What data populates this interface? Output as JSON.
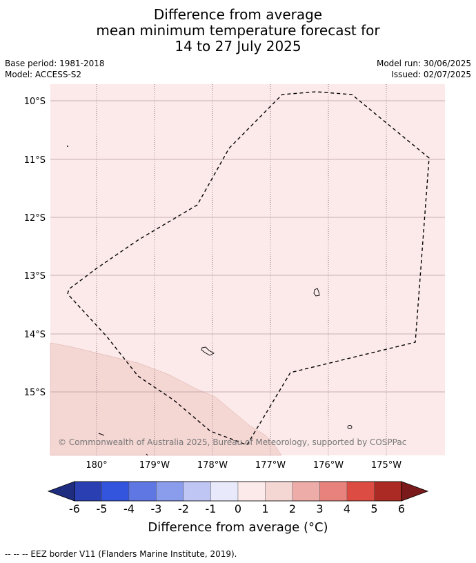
{
  "title": {
    "line1": "Difference from average",
    "line2": "mean minimum temperature forecast for",
    "line3": "14 to 27 July 2025"
  },
  "meta": {
    "base_period": "Base period: 1981-2018",
    "model": "Model: ACCESS-S2",
    "model_run": "Model run: 30/06/2025",
    "issued": "Issued: 02/07/2025"
  },
  "map": {
    "lat_labels": [
      "10°S",
      "11°S",
      "12°S",
      "13°S",
      "14°S",
      "15°S"
    ],
    "lon_labels": [
      "180°",
      "179°W",
      "178°W",
      "177°W",
      "176°W",
      "175°W"
    ],
    "copyright": "© Commonwealth of Australia 2025, Bureau of Meteorology, supported by COSPPac",
    "fill_colors": {
      "class_0_to_1": "#fbeae9",
      "class_1_to_2": "#f4d6d3",
      "graticule": "#b89aa0"
    }
  },
  "colorbar": {
    "title": "Difference from average (°C)",
    "tick_labels": [
      "-6",
      "-5",
      "-4",
      "-3",
      "-2",
      "-1",
      "0",
      "1",
      "2",
      "3",
      "4",
      "5",
      "6"
    ],
    "colors": [
      "#1f2d80",
      "#2a40b2",
      "#3355dd",
      "#5f77e3",
      "#8a9cec",
      "#bfc6f4",
      "#e8eafc",
      "#fbeae9",
      "#f4d6d3",
      "#eeaca9",
      "#e8827c",
      "#dc4c42",
      "#ab2a23",
      "#7a1a1a"
    ]
  },
  "footnote": "--  --  -- EEZ border V11 (Flanders Marine Institute, 2019)."
}
